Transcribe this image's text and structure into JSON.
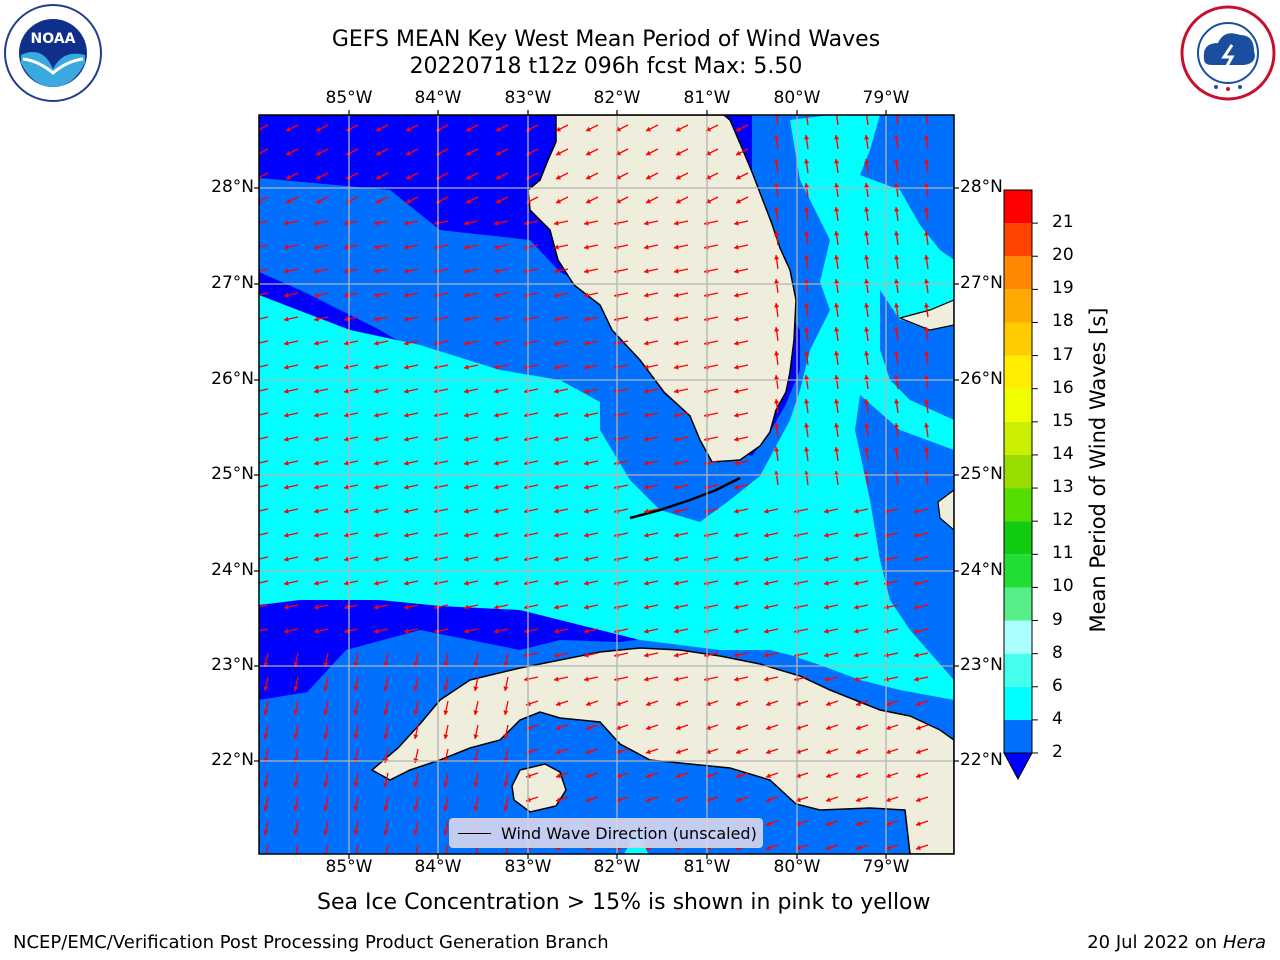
{
  "header": {
    "title_line1": "GEFS MEAN Key West Mean Period of Wind Waves",
    "title_line2": "20220718 t12z 096h fcst   Max: 5.50"
  },
  "map": {
    "longitude_labels": [
      "85°W",
      "84°W",
      "83°W",
      "82°W",
      "81°W",
      "80°W",
      "79°W"
    ],
    "latitude_labels": [
      "28°N",
      "27°N",
      "26°N",
      "25°N",
      "24°N",
      "23°N",
      "22°N"
    ],
    "legend_label": "Wind Wave Direction (unscaled)",
    "colors": {
      "land": "#efeedd",
      "gridline": "#b4b4b4",
      "arrow": "#ff0000",
      "coastline": "#000000"
    }
  },
  "colorbar": {
    "label": "Mean Period of Wind Waves [s]",
    "ticks": [
      "2",
      "4",
      "6",
      "8",
      "9",
      "10",
      "11",
      "12",
      "13",
      "14",
      "15",
      "16",
      "17",
      "18",
      "19",
      "20",
      "21"
    ],
    "colors": [
      "#0070ff",
      "#00ffff",
      "#44ffee",
      "#aaffff",
      "#55ee88",
      "#22dd33",
      "#11cc11",
      "#55dd00",
      "#99dd00",
      "#ccee00",
      "#eeff00",
      "#ffee00",
      "#ffcc00",
      "#ffaa00",
      "#ff8800",
      "#ff4400",
      "#ff0000"
    ],
    "under_color": "#0000ff"
  },
  "footer": {
    "note": "Sea Ice Concentration > 15% is shown in pink to yellow",
    "credit": "NCEP/EMC/Verification Post Processing Product Generation Branch",
    "date": "20 Jul 2022 on",
    "host": "Hera"
  },
  "logos": {
    "left": {
      "icon": "noaa-logo",
      "text": "NOAA"
    },
    "right": {
      "icon": "nws-logo"
    }
  }
}
